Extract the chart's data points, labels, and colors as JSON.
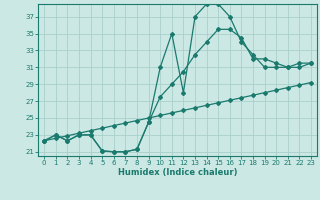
{
  "xlabel": "Humidex (Indice chaleur)",
  "bg_color": "#cce8e4",
  "grid_color": "#aacfca",
  "line_color": "#1a7a6e",
  "xlim": [
    -0.5,
    23.5
  ],
  "ylim": [
    20.5,
    38.5
  ],
  "xticks": [
    0,
    1,
    2,
    3,
    4,
    5,
    6,
    7,
    8,
    9,
    10,
    11,
    12,
    13,
    14,
    15,
    16,
    17,
    18,
    19,
    20,
    21,
    22,
    23
  ],
  "yticks": [
    21,
    23,
    25,
    27,
    29,
    31,
    33,
    35,
    37
  ],
  "series1_x": [
    0,
    1,
    2,
    3,
    4,
    5,
    6,
    7,
    8,
    9,
    10,
    11,
    12,
    13,
    14,
    15,
    16,
    17,
    18,
    19,
    20,
    21,
    22,
    23
  ],
  "series1_y": [
    22.3,
    23.0,
    22.3,
    23.0,
    23.0,
    21.1,
    21.0,
    21.0,
    21.3,
    24.5,
    31.0,
    35.0,
    28.0,
    37.0,
    38.5,
    38.5,
    37.0,
    34.0,
    32.5,
    31.0,
    31.0,
    31.0,
    31.5,
    31.5
  ],
  "series2_x": [
    0,
    1,
    2,
    3,
    4,
    5,
    6,
    7,
    8,
    9,
    10,
    11,
    12,
    13,
    14,
    15,
    16,
    17,
    18,
    19,
    20,
    21,
    22,
    23
  ],
  "series2_y": [
    22.3,
    23.0,
    22.3,
    23.0,
    23.0,
    21.1,
    21.0,
    21.0,
    21.3,
    24.5,
    27.5,
    29.0,
    30.5,
    32.5,
    34.0,
    35.5,
    35.5,
    34.5,
    32.0,
    32.0,
    31.5,
    31.0,
    31.0,
    31.5
  ],
  "series3_x": [
    0,
    1,
    2,
    3,
    4,
    5,
    6,
    7,
    8,
    9,
    10,
    11,
    12,
    13,
    14,
    15,
    16,
    17,
    18,
    19,
    20,
    21,
    22,
    23
  ],
  "series3_y": [
    22.3,
    22.6,
    22.9,
    23.2,
    23.5,
    23.8,
    24.1,
    24.4,
    24.7,
    25.0,
    25.3,
    25.6,
    25.9,
    26.2,
    26.5,
    26.8,
    27.1,
    27.4,
    27.7,
    28.0,
    28.3,
    28.6,
    28.9,
    29.2
  ],
  "xlabel_fontsize": 6.0,
  "tick_fontsize": 5.0
}
